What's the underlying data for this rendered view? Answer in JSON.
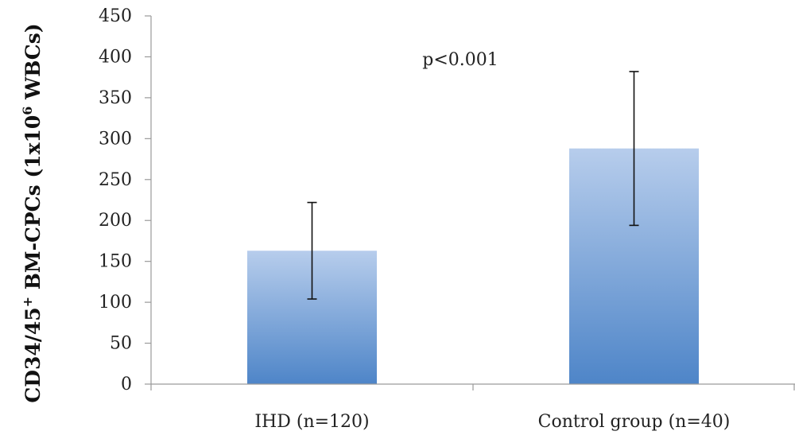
{
  "chart_data": {
    "type": "bar",
    "title": "",
    "xlabel": "",
    "ylabel": "CD34/45",
    "ylabel_sup1": "+",
    "ylabel_mid": " BM-CPCs (1x10",
    "ylabel_sup2": "6",
    "ylabel_end": " WBCs)",
    "ylim": [
      0,
      450
    ],
    "yticks": [
      0,
      50,
      100,
      150,
      200,
      250,
      300,
      350,
      400,
      450
    ],
    "categories": [
      "IHD (n=120)",
      "Control group (n=40)"
    ],
    "values": [
      163,
      288
    ],
    "error_low": [
      104,
      194
    ],
    "error_high": [
      222,
      382
    ],
    "annotation": "p<0.001",
    "grid": false,
    "legend": "none",
    "bar_color_top": "#b7cdec",
    "bar_color_bottom": "#4e85c8"
  }
}
